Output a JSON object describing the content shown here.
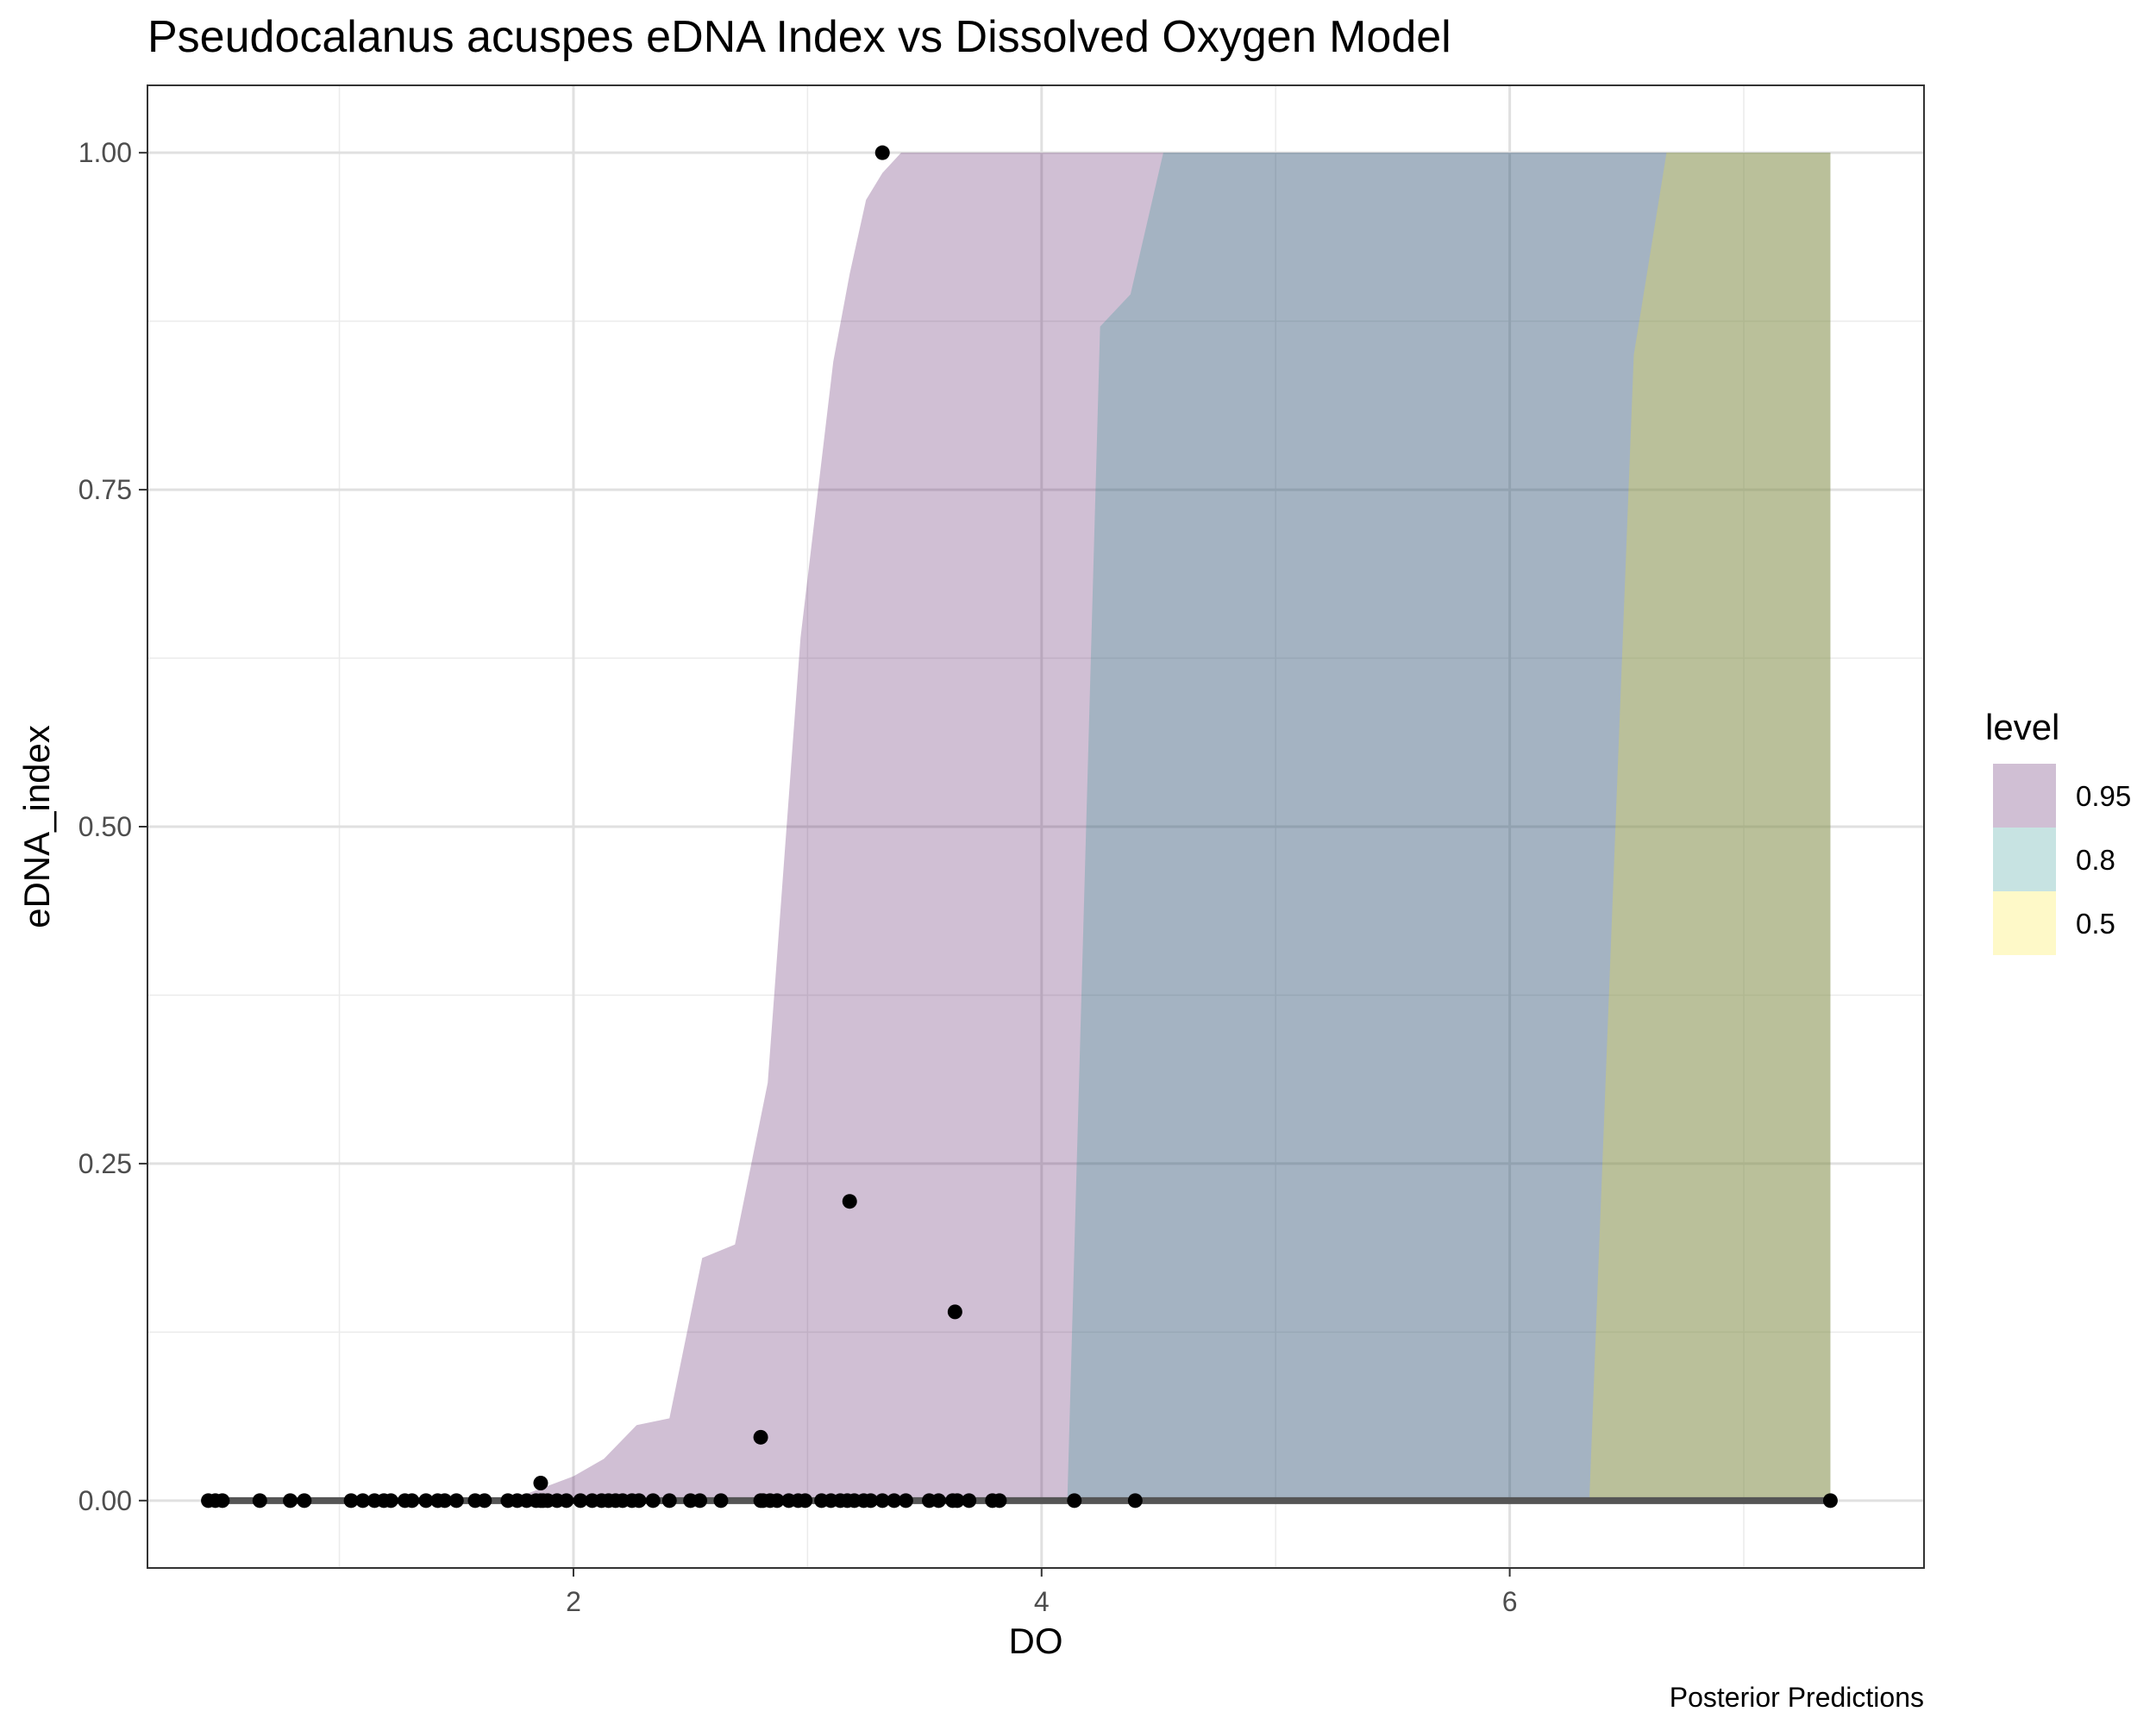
{
  "chart_data": {
    "type": "area",
    "title": "Pseudocalanus acuspes eDNA Index vs Dissolved Oxygen Model",
    "xlabel": "DO",
    "ylabel": "eDNA_index",
    "caption": "Posterior Predictions",
    "xlim": [
      0.18,
      7.77
    ],
    "ylim": [
      -0.05,
      1.05
    ],
    "x_ticks": [
      2,
      4,
      6
    ],
    "x_tick_labels": [
      "2",
      "4",
      "6"
    ],
    "x_minor_ticks": [
      1,
      3,
      5,
      7
    ],
    "y_ticks": [
      0,
      0.25,
      0.5,
      0.75,
      1.0
    ],
    "y_tick_labels": [
      "0.00",
      "0.25",
      "0.50",
      "0.75",
      "1.00"
    ],
    "y_minor_ticks": [
      0.125,
      0.375,
      0.625,
      0.875
    ],
    "grid": true,
    "legend": {
      "title": "level",
      "position": "right",
      "entries": [
        {
          "label": "0.95",
          "color": "#440154"
        },
        {
          "label": "0.8",
          "color": "#21908C"
        },
        {
          "label": "0.5",
          "color": "#FDE725"
        }
      ]
    },
    "band_opacity": 0.25,
    "bands": [
      {
        "level": "0.95",
        "color": "#440154",
        "x": [
          1.6,
          1.8,
          2.0,
          2.13,
          2.27,
          2.41,
          2.55,
          2.69,
          2.83,
          2.97,
          3.11,
          3.18,
          3.25,
          3.32,
          3.4,
          3.5,
          4.0,
          4.54,
          5.0,
          6.0,
          7.0,
          7.37
        ],
        "upper": [
          0.0,
          0.005,
          0.018,
          0.031,
          0.056,
          0.061,
          0.18,
          0.19,
          0.31,
          0.64,
          0.845,
          0.91,
          0.965,
          0.985,
          1.0,
          1.0,
          1.0,
          1.0,
          1.0,
          1.0,
          1.0,
          1.0
        ]
      },
      {
        "level": "0.8",
        "color": "#21908C",
        "x": [
          4.11,
          4.25,
          4.38,
          4.52,
          5.0,
          6.0,
          7.0,
          7.37
        ],
        "upper": [
          0.0,
          0.871,
          0.895,
          1.0,
          1.0,
          1.0,
          1.0,
          1.0
        ]
      },
      {
        "level": "0.5",
        "color": "#FDE725",
        "x": [
          6.34,
          6.53,
          6.67,
          7.0,
          7.37
        ],
        "upper": [
          0.0,
          0.85,
          1.0,
          1.0,
          1.0
        ]
      }
    ],
    "median_line": {
      "x": [
        0.44,
        7.37
      ],
      "y": [
        0.0,
        0.0
      ]
    },
    "points": {
      "x": [
        0.44,
        0.47,
        0.5,
        0.66,
        0.79,
        0.85,
        1.05,
        1.1,
        1.15,
        1.19,
        1.22,
        1.28,
        1.31,
        1.37,
        1.42,
        1.45,
        1.5,
        1.58,
        1.62,
        1.72,
        1.76,
        1.8,
        1.84,
        1.86,
        1.87,
        1.89,
        1.93,
        1.97,
        2.03,
        2.08,
        2.12,
        2.15,
        2.18,
        2.21,
        2.25,
        2.28,
        2.34,
        2.41,
        2.5,
        2.54,
        2.63,
        2.8,
        2.81,
        2.84,
        2.87,
        2.92,
        2.96,
        2.99,
        3.06,
        3.1,
        3.14,
        3.17,
        3.2,
        3.24,
        3.27,
        3.32,
        3.37,
        3.42,
        3.52,
        3.56,
        3.62,
        3.64,
        3.69,
        3.79,
        3.82,
        4.14,
        4.4,
        7.37,
        1.86,
        2.8,
        3.18,
        3.63,
        3.32
      ],
      "y": [
        0,
        0,
        0,
        0,
        0,
        0,
        0,
        0,
        0,
        0,
        0,
        0,
        0,
        0,
        0,
        0,
        0,
        0,
        0,
        0,
        0,
        0,
        0,
        0,
        0,
        0,
        0,
        0,
        0,
        0,
        0,
        0,
        0,
        0,
        0,
        0,
        0,
        0,
        0,
        0,
        0,
        0,
        0,
        0,
        0,
        0,
        0,
        0,
        0,
        0,
        0,
        0,
        0,
        0,
        0,
        0,
        0,
        0,
        0,
        0,
        0,
        0,
        0,
        0,
        0,
        0,
        0,
        0,
        0.013,
        0.047,
        0.222,
        0.14,
        1.0
      ]
    }
  }
}
